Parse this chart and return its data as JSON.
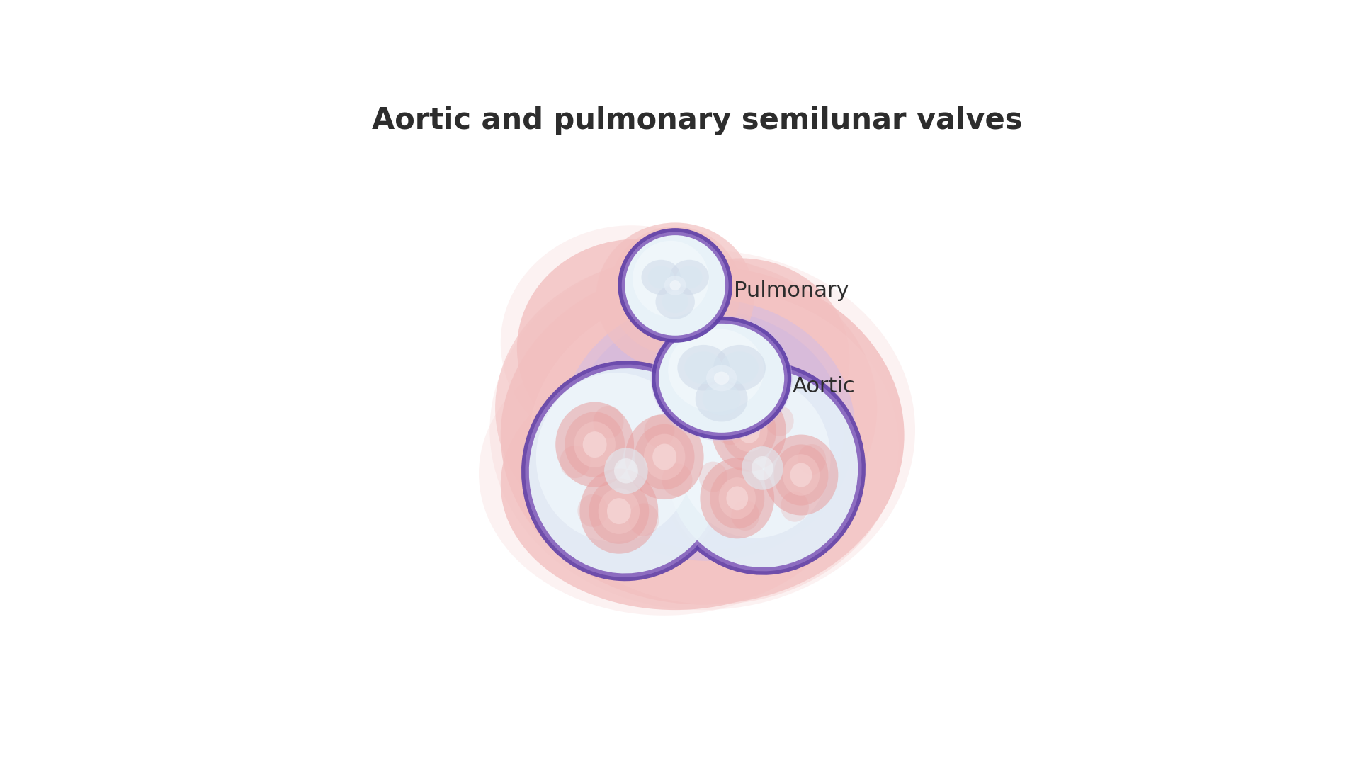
{
  "title": "Aortic and pulmonary semilunar valves",
  "title_fontsize": 30,
  "title_color": "#2d2d2d",
  "title_fontweight": "bold",
  "background_color": "#ffffff",
  "pulmonary_label": "Pulmonary",
  "aortic_label": "Aortic",
  "label_fontsize": 22,
  "label_color": "#2d2d2d",
  "body_pink": "#f2c0c0",
  "body_pink2": "#f5caca",
  "body_pink_edge": "#e8b0b0",
  "lavender_fill": "#d0bce8",
  "purple_ring": "#6040a8",
  "purple_ring_light": "#9878c8",
  "valve_white": "#e8f2f8",
  "valve_white2": "#f2f8fc",
  "cusp_pink": "#e8a0a0",
  "cusp_pink_light": "#f2c8c8",
  "cusp_center": "#f8e0e0"
}
